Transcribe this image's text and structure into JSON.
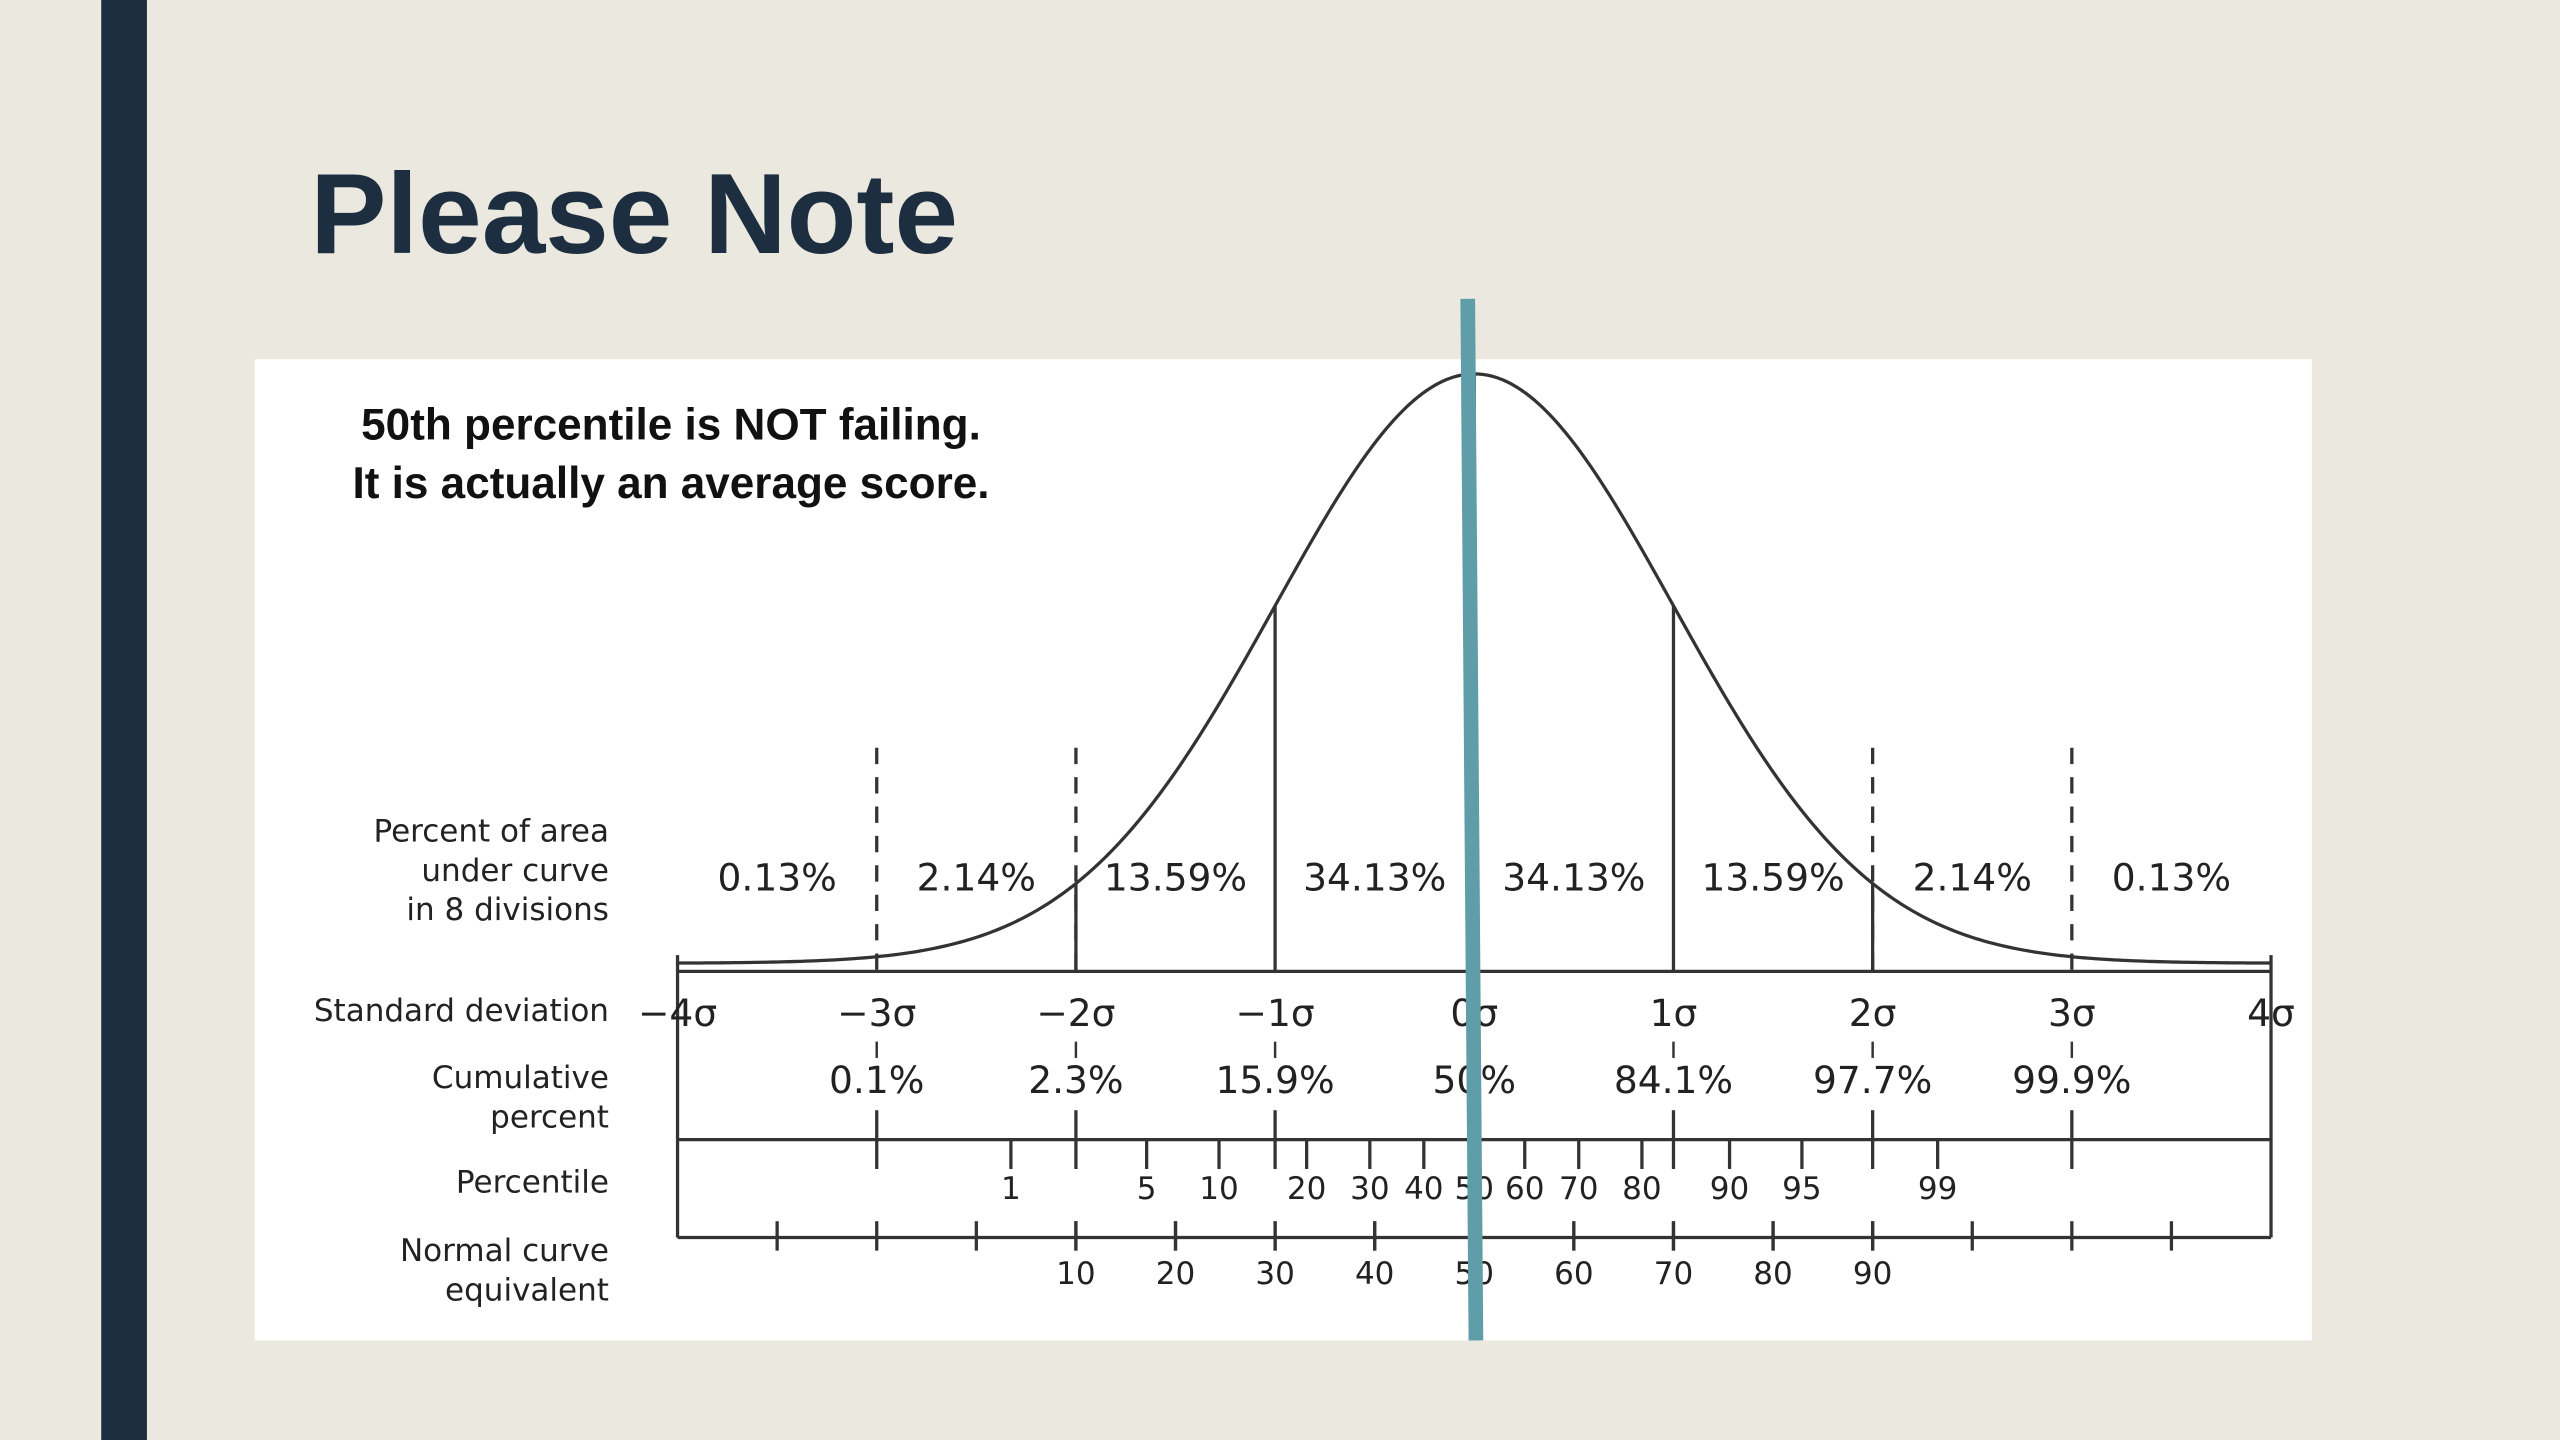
{
  "header": {
    "title": "Please Note"
  },
  "note": [
    "50th percentile is NOT failing.",
    "It is actually an average score."
  ],
  "rows": {
    "area": {
      "label": [
        "Percent of area",
        "under curve",
        "in 8 divisions"
      ],
      "values": [
        "0.13%",
        "2.14%",
        "13.59%",
        "34.13%",
        "34.13%",
        "13.59%",
        "2.14%",
        "0.13%"
      ]
    },
    "sigma": {
      "label": [
        "Standard deviation"
      ],
      "values": [
        "−4σ",
        "−3σ",
        "−2σ",
        "−1σ",
        "0σ",
        "1σ",
        "2σ",
        "3σ",
        "4σ"
      ]
    },
    "cumulative": {
      "label": [
        "Cumulative",
        "percent"
      ],
      "values": [
        "0.1%",
        "2.3%",
        "15.9%",
        "50%",
        "84.1%",
        "97.7%",
        "99.9%"
      ]
    },
    "percentile": {
      "label": [
        "Percentile"
      ],
      "values": [
        1,
        5,
        10,
        20,
        30,
        40,
        50,
        60,
        70,
        80,
        90,
        95,
        99
      ]
    },
    "nce": {
      "label": [
        "Normal curve",
        "equivalent"
      ],
      "values": [
        10,
        20,
        30,
        40,
        50,
        60,
        70,
        80,
        90
      ]
    }
  }
}
